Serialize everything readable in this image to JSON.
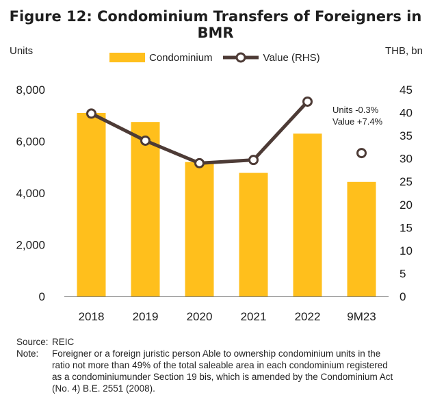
{
  "title": "Figure 12: Condominium  Transfers of Foreigners in BMR",
  "unit_left": "Units",
  "unit_right": "THB, bn",
  "legend": {
    "bar_label": "Condominium",
    "line_label": "Value (RHS)"
  },
  "annotation": {
    "line1": "Units  -0.3%",
    "line2": "Value +7.4%"
  },
  "footer": {
    "source_key": "Source:",
    "source_text": "REIC",
    "note_key": "Note:",
    "note_text": "Foreigner or a foreign juristic person Able to ownership condominium units in the ratio not more than 49% of the total saleable area in each condominium registered as a condominiumunder Section 19 bis, which is amended by the Condominium Act (No. 4) B.E. 2551 (2008)."
  },
  "colors": {
    "bar": "#FFBF1C",
    "line": "#4D3B36",
    "axis": "#7f7f7f"
  },
  "chart_data": {
    "type": "bar",
    "categories": [
      "2018",
      "2019",
      "2020",
      "2021",
      "2022",
      "9M23"
    ],
    "series": [
      {
        "name": "Condominium",
        "type": "bar",
        "axis": "left",
        "values": [
          7100,
          6750,
          5200,
          4780,
          6300,
          4430
        ]
      },
      {
        "name": "Value (RHS)",
        "type": "line",
        "axis": "right",
        "values": [
          39.8,
          33.9,
          29.0,
          29.7,
          42.4,
          31.2
        ],
        "connected": [
          true,
          true,
          true,
          true,
          true,
          false
        ]
      }
    ],
    "ylim": [
      0,
      8000
    ],
    "y2lim": [
      0,
      45
    ],
    "yticks": [
      "0",
      "2,000",
      "4,000",
      "6,000",
      "8,000"
    ],
    "y2ticks": [
      "0",
      "5",
      "10",
      "15",
      "20",
      "25",
      "30",
      "35",
      "40",
      "45"
    ],
    "legend_position": "top"
  }
}
